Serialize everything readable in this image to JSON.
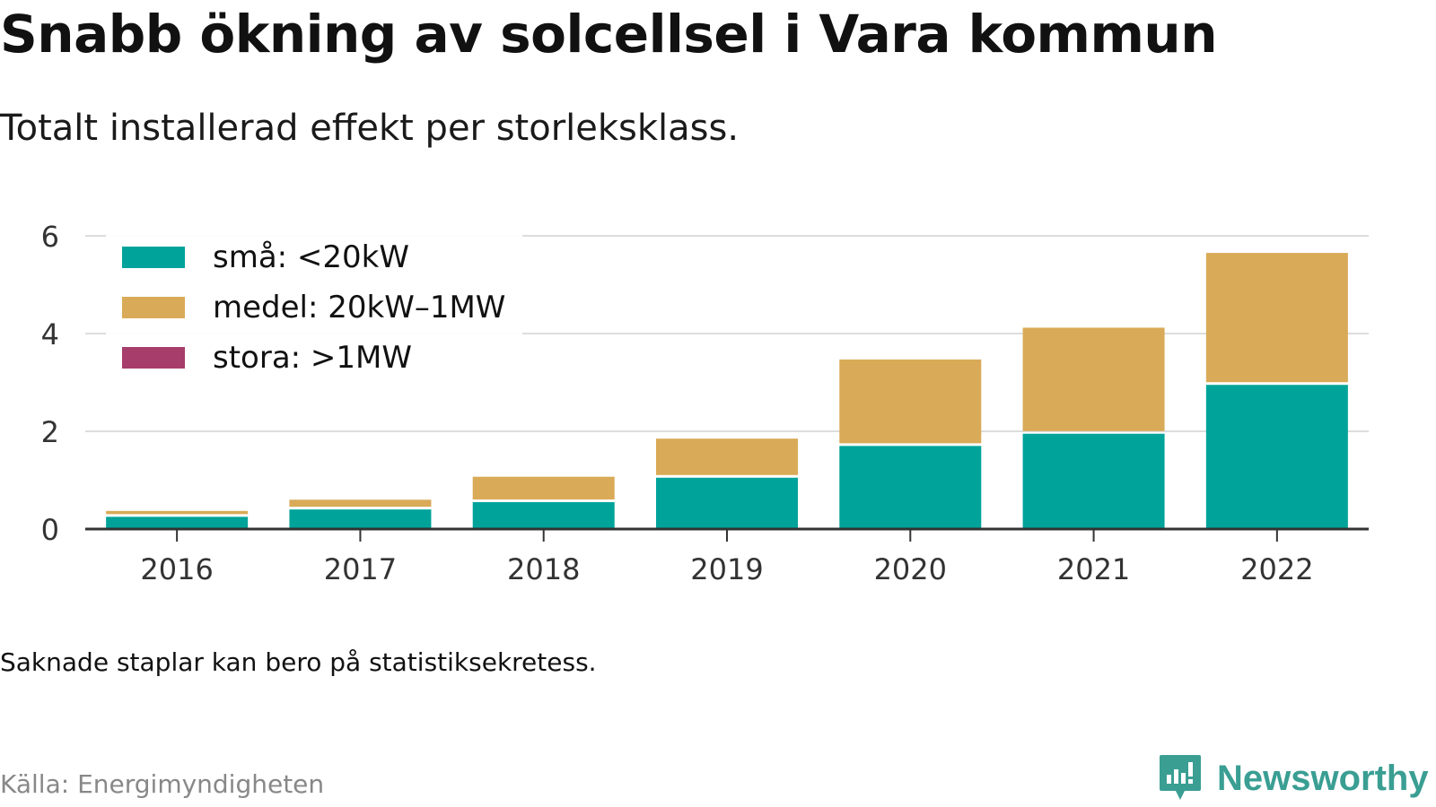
{
  "header": {
    "title": "Snabb ökning av solcellsel i Vara kommun",
    "subtitle": "Totalt installerad effekt per storleksklass."
  },
  "footer": {
    "note": "Saknade staplar kan bero på statistiksekretess.",
    "source": "Källa: Energimyndigheten",
    "brand": "Newsworthy"
  },
  "colors": {
    "small": "#00a39a",
    "medium": "#d9aa57",
    "large": "#a63d6a",
    "grid": "#dddddd",
    "axis": "#333333",
    "brand": "#3a9e93"
  },
  "chart_data": {
    "type": "bar",
    "stacked": true,
    "categories": [
      "2016",
      "2017",
      "2018",
      "2019",
      "2020",
      "2021",
      "2022"
    ],
    "series": [
      {
        "name": "små: <20kW",
        "color": "#00a39a",
        "values": [
          0.25,
          0.4,
          0.55,
          1.05,
          1.7,
          1.95,
          2.95
        ]
      },
      {
        "name": "medel: 20kW–1MW",
        "color": "#d9aa57",
        "values": [
          0.12,
          0.2,
          0.52,
          0.8,
          1.77,
          2.17,
          2.7
        ]
      },
      {
        "name": "stora: >1MW",
        "color": "#a63d6a",
        "values": [
          0,
          0,
          0,
          0,
          0,
          0,
          0
        ]
      }
    ],
    "ylim": [
      0,
      6
    ],
    "yticks": [
      "0",
      "2",
      "4",
      "6"
    ],
    "grid": true,
    "legend_position": "top-left"
  }
}
